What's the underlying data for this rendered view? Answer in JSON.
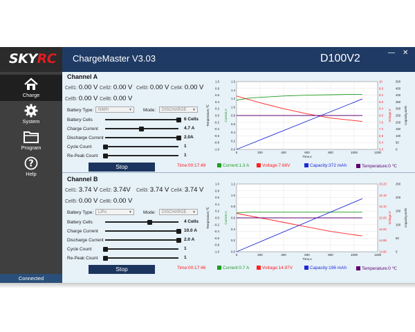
{
  "app": {
    "logo_a": "SKY",
    "logo_b": "RC",
    "title": "ChargeMaster V3.03",
    "model": "D100V2",
    "minimize": "—",
    "close": "✕"
  },
  "sidebar": {
    "items": [
      {
        "label": "Charge",
        "icon": "home-icon"
      },
      {
        "label": "System",
        "icon": "gear-icon"
      },
      {
        "label": "Program",
        "icon": "folder-icon"
      },
      {
        "label": "Help",
        "icon": "help-icon"
      }
    ],
    "status": "Connected"
  },
  "colors": {
    "current": "#1f9d20",
    "voltage": "#ff2020",
    "capacity": "#1e28d8",
    "temperature": "#5b0070",
    "titlebar": "#1f3a64",
    "sidebar": "#3f3f3f"
  },
  "labels": {
    "battery_type": "Battery Type:",
    "mode": "Mode:",
    "battery_cells": "Battery Cells",
    "charge_current": "Charge Current",
    "discharge_current": "Discharge Current",
    "cycle_count": "Cycle Count",
    "repeak_count": "Re-Peak Count",
    "stop": "Stop"
  },
  "channels": [
    {
      "title": "Channel A",
      "cells": [
        {
          "label": "Cell1:",
          "value": "0.00 V"
        },
        {
          "label": "Cell2:",
          "value": "0.00 V"
        },
        {
          "label": "Cell3:",
          "value": "0.00 V"
        },
        {
          "label": "Cell4:",
          "value": "0.00 V"
        },
        {
          "label": "Cell5:",
          "value": "0.00 V"
        },
        {
          "label": "Cell6:",
          "value": "0.00 V"
        }
      ],
      "battery_type": "NiMH",
      "mode": "DISCHARGE",
      "sliders": [
        {
          "value": "6 Cells",
          "level": 1.0
        },
        {
          "value": "4.7 A",
          "level": 0.49
        },
        {
          "value": "2.0A",
          "level": 1.0
        },
        {
          "value": "1",
          "level": 0.0
        },
        {
          "value": "1",
          "level": 0.0
        }
      ],
      "status": {
        "time": "Time:00:17:49",
        "current": "Current:1.3 A",
        "voltage": "Voltage:7.68V",
        "capacity": "Capacity:372 mAh",
        "temperature": "Temperature:0 ℃"
      }
    },
    {
      "title": "Channel B",
      "cells": [
        {
          "label": "Cell1:",
          "value": "3.74 V"
        },
        {
          "label": "Cell2:",
          "value": "3.74V"
        },
        {
          "label": "Cell3:",
          "value": "3.74 V"
        },
        {
          "label": "Cell4:",
          "value": "3.74 V"
        },
        {
          "label": "Cell5:",
          "value": "0.00 V"
        },
        {
          "label": "Cell6:",
          "value": "0.00 V"
        }
      ],
      "battery_type": "LiPo",
      "mode": "DISCHARGE",
      "sliders": [
        {
          "value": "4 Cells",
          "level": 0.6
        },
        {
          "value": "10.0 A",
          "level": 1.0
        },
        {
          "value": "2.0 A",
          "level": 1.0
        },
        {
          "value": "1",
          "level": 0.0
        },
        {
          "value": "1",
          "level": 0.0
        }
      ],
      "status": {
        "time": "Time:00:17:46",
        "current": "Current:0.7 A",
        "voltage": "Voltage:14.97V",
        "capacity": "Capacity:196 mAh",
        "temperature": "Temperature:0 ℃"
      }
    }
  ],
  "chart_data": [
    {
      "type": "line",
      "xlabel": "Time,s",
      "ylabel_current": "Current,A",
      "ylabel_temperature": "Temperature,℃",
      "ylabel_voltage": "Voltage,V",
      "ylabel_capacity": "Capacity,mAh",
      "xlim": [
        0,
        1200
      ],
      "xticks": [
        "0",
        "200",
        "400",
        "600",
        "800",
        "1000",
        "1200"
      ],
      "temp_ticks": [
        "1.0",
        "0.8",
        "0.6",
        "0.4",
        "0.2",
        "0.0",
        "-0.2",
        "-0.4",
        "-0.6",
        "-0.8",
        "-1.0"
      ],
      "current_ticks": [
        "1.6",
        "1.4",
        "1.2",
        "1.0",
        "0.8",
        "0.6",
        "0.4",
        "0.2",
        "0.0"
      ],
      "voltage_ticks": [
        "10",
        "9.6",
        "9.2",
        "8.8",
        "8.4",
        "8.0",
        "7.6",
        "7.2",
        "6.8",
        "6.4",
        "6.0"
      ],
      "capacity_ticks": [
        "500",
        "450",
        "400",
        "350",
        "300",
        "250",
        "200",
        "150",
        "100",
        "50",
        "0"
      ],
      "current_lim": [
        0,
        1.6
      ],
      "voltage_lim": [
        6.0,
        10.0
      ],
      "capacity_lim": [
        0,
        500
      ],
      "temp_lim": [
        -1.0,
        1.0
      ],
      "series": [
        {
          "name": "Current",
          "axis": "current",
          "x": [
            0,
            100,
            200,
            400,
            600,
            800,
            1000,
            1070
          ],
          "y": [
            1.16,
            1.21,
            1.23,
            1.26,
            1.28,
            1.29,
            1.3,
            1.3
          ]
        },
        {
          "name": "Voltage",
          "axis": "voltage",
          "x": [
            0,
            100,
            200,
            400,
            600,
            800,
            1000,
            1070
          ],
          "y": [
            9.15,
            8.95,
            8.75,
            8.4,
            8.1,
            7.85,
            7.7,
            7.65
          ]
        },
        {
          "name": "Capacity",
          "axis": "capacity",
          "x": [
            0,
            1070
          ],
          "y": [
            0,
            372
          ]
        },
        {
          "name": "Temperature",
          "axis": "temp",
          "x": [
            0,
            1070
          ],
          "y": [
            0,
            0
          ]
        }
      ]
    },
    {
      "type": "line",
      "xlabel": "Time,s",
      "ylabel_current": "Current,A",
      "ylabel_temperature": "Temperature,℃",
      "ylabel_voltage": "Voltage,V",
      "ylabel_capacity": "Capacity,mAh",
      "xlim": [
        0,
        1200
      ],
      "xticks": [
        "0",
        "200",
        "400",
        "600",
        "800",
        "1000",
        "1200"
      ],
      "temp_ticks": [
        "1.0",
        "0.8",
        "0.6",
        "0.4",
        "0.2",
        "0.0",
        "-0.2",
        "-0.4",
        "-0.6",
        "-0.8",
        "-1.0"
      ],
      "current_ticks": [
        "1.2",
        "1.0",
        "0.8",
        "0.6",
        "0.4",
        "0.2",
        "0.0"
      ],
      "voltage_ticks": [
        "15.20",
        "15.15",
        "15.10",
        "15.05",
        "15.00",
        "14.95",
        "14.90"
      ],
      "capacity_ticks": [
        "250",
        "200",
        "150",
        "100",
        "50",
        "0"
      ],
      "current_lim": [
        0,
        1.2
      ],
      "voltage_lim": [
        14.9,
        15.2
      ],
      "capacity_lim": [
        0,
        250
      ],
      "temp_lim": [
        -1.0,
        1.0
      ],
      "series": [
        {
          "name": "Current",
          "axis": "current",
          "x": [
            0,
            100,
            1070
          ],
          "y": [
            0.69,
            0.7,
            0.7
          ]
        },
        {
          "name": "Voltage",
          "axis": "voltage",
          "x": [
            0,
            200,
            400,
            600,
            800,
            1000,
            1070
          ],
          "y": [
            15.07,
            15.05,
            15.03,
            15.01,
            14.99,
            14.975,
            14.97
          ]
        },
        {
          "name": "Capacity",
          "axis": "capacity",
          "x": [
            0,
            1070
          ],
          "y": [
            0,
            196
          ]
        },
        {
          "name": "Temperature",
          "axis": "temp",
          "x": [
            0,
            1070
          ],
          "y": [
            0,
            0
          ]
        }
      ]
    }
  ]
}
